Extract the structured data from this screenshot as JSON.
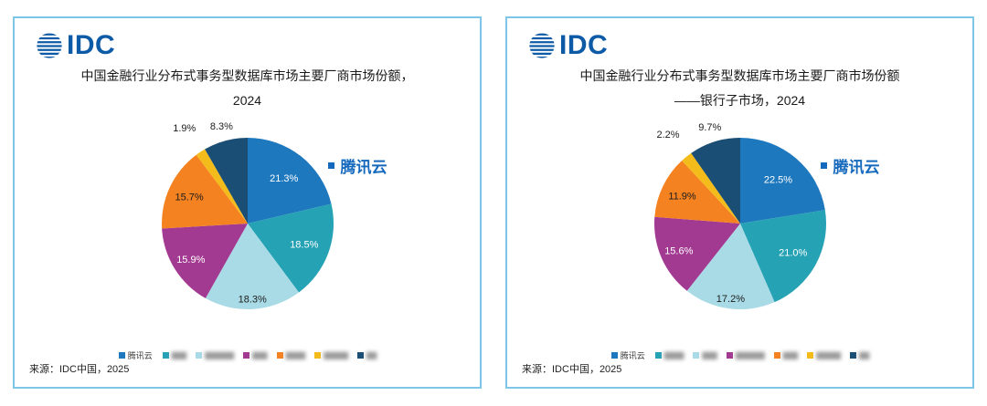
{
  "brand": {
    "logo_text": "IDC"
  },
  "chart_data": [
    {
      "type": "pie",
      "title": "中国金融行业分布式事务型数据库市场主要厂商市场份额，2024",
      "title_line1": "中国金融行业分布式事务型数据库市场主要厂商市场份额，",
      "title_line2": "2024",
      "callout_label": "腾讯云",
      "source": "来源：IDC中国，2025",
      "legend_position": "bottom",
      "slices": [
        {
          "name": "腾讯云",
          "value": 21.3,
          "label": "21.3%",
          "color": "#1e78be",
          "label_tone": "light",
          "label_r": 0.68
        },
        {
          "name": "",
          "value": 18.5,
          "label": "18.5%",
          "color": "#26a2b5",
          "label_tone": "light",
          "label_r": 0.7
        },
        {
          "name": "",
          "value": 18.3,
          "label": "18.3%",
          "color": "#a9dbe6",
          "label_tone": "dark",
          "label_r": 0.88
        },
        {
          "name": "",
          "value": 15.9,
          "label": "15.9%",
          "color": "#a33a92",
          "label_tone": "light",
          "label_r": 0.78
        },
        {
          "name": "",
          "value": 15.7,
          "label": "15.7%",
          "color": "#f58220",
          "label_tone": "dark",
          "label_r": 0.75
        },
        {
          "name": "",
          "value": 1.9,
          "label": "1.9%",
          "color": "#f3bc1b",
          "label_tone": "dark",
          "label_r": 1.34
        },
        {
          "name": "",
          "value": 8.3,
          "label": "8.3%",
          "color": "#1b4e74",
          "label_tone": "dark",
          "label_r": 1.18
        }
      ],
      "legend": [
        {
          "label": "腾讯云",
          "color": "#1e78be",
          "blurred": false
        },
        {
          "label": "▇▇▇",
          "color": "#26a2b5",
          "blurred": true
        },
        {
          "label": "▇▇▇▇▇▇",
          "color": "#a9dbe6",
          "blurred": true
        },
        {
          "label": "▇▇▇",
          "color": "#a33a92",
          "blurred": true
        },
        {
          "label": "▇▇▇▇",
          "color": "#f58220",
          "blurred": true
        },
        {
          "label": "▇▇▇▇▇",
          "color": "#f3bc1b",
          "blurred": true
        },
        {
          "label": "▇▇",
          "color": "#1b4e74",
          "blurred": true
        }
      ]
    },
    {
      "type": "pie",
      "title": "中国金融行业分布式事务型数据库市场主要厂商市场份额——银行子市场，2024",
      "title_line1": "中国金融行业分布式事务型数据库市场主要厂商市场份额",
      "title_line2": "——银行子市场，2024",
      "callout_label": "腾讯云",
      "source": "来源：IDC中国，2025",
      "legend_position": "bottom",
      "slices": [
        {
          "name": "腾讯云",
          "value": 22.5,
          "label": "22.5%",
          "color": "#1e78be",
          "label_tone": "light",
          "label_r": 0.68
        },
        {
          "name": "",
          "value": 21.0,
          "label": "21.0%",
          "color": "#26a2b5",
          "label_tone": "light",
          "label_r": 0.7
        },
        {
          "name": "",
          "value": 17.2,
          "label": "17.2%",
          "color": "#a9dbe6",
          "label_tone": "dark",
          "label_r": 0.88
        },
        {
          "name": "",
          "value": 15.6,
          "label": "15.6%",
          "color": "#a33a92",
          "label_tone": "light",
          "label_r": 0.78
        },
        {
          "name": "",
          "value": 11.9,
          "label": "11.9%",
          "color": "#f58220",
          "label_tone": "dark",
          "label_r": 0.75
        },
        {
          "name": "",
          "value": 2.2,
          "label": "2.2%",
          "color": "#f3bc1b",
          "label_tone": "dark",
          "label_r": 1.34
        },
        {
          "name": "",
          "value": 9.7,
          "label": "9.7%",
          "color": "#1b4e74",
          "label_tone": "dark",
          "label_r": 1.18
        }
      ],
      "legend": [
        {
          "label": "腾讯云",
          "color": "#1e78be",
          "blurred": false
        },
        {
          "label": "▇▇▇▇",
          "color": "#26a2b5",
          "blurred": true
        },
        {
          "label": "▇▇▇",
          "color": "#a9dbe6",
          "blurred": true
        },
        {
          "label": "▇▇▇▇▇▇",
          "color": "#a33a92",
          "blurred": true
        },
        {
          "label": "▇▇▇",
          "color": "#f58220",
          "blurred": true
        },
        {
          "label": "▇▇▇▇▇",
          "color": "#f3bc1b",
          "blurred": true
        },
        {
          "label": "▇▇",
          "color": "#1b4e74",
          "blurred": true
        }
      ]
    }
  ]
}
